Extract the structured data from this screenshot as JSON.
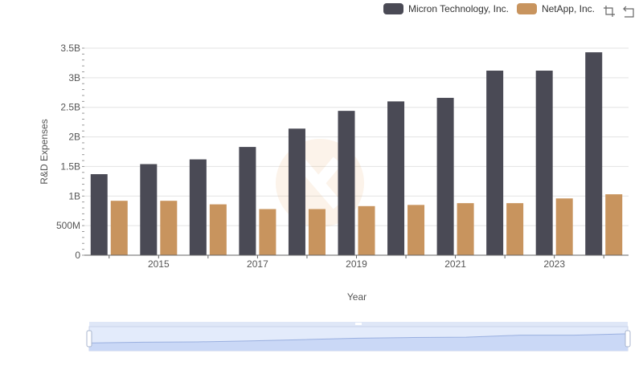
{
  "legend": {
    "items": [
      {
        "label": "Micron Technology, Inc.",
        "color": "#4a4a55"
      },
      {
        "label": "NetApp, Inc.",
        "color": "#c8945e"
      }
    ]
  },
  "toolbox": {
    "icons": [
      "zoom-icon",
      "restore-icon"
    ]
  },
  "chart_data": {
    "type": "bar",
    "xlabel": "Year",
    "ylabel": "R&D Expenses",
    "categories": [
      "2014",
      "2015",
      "2016",
      "2017",
      "2018",
      "2019",
      "2020",
      "2021",
      "2022",
      "2023",
      "2024"
    ],
    "x_tick_labels": [
      "2015",
      "2017",
      "2019",
      "2021",
      "2023"
    ],
    "y_ticks": [
      0,
      500000000,
      1000000000,
      1500000000,
      2000000000,
      2500000000,
      3000000000,
      3500000000
    ],
    "y_tick_labels": [
      "0",
      "500M",
      "1B",
      "1.5B",
      "2B",
      "2.5B",
      "3B",
      "3.5B"
    ],
    "ylim": [
      0,
      3500000000
    ],
    "series": [
      {
        "name": "Micron Technology, Inc.",
        "color": "#4a4a55",
        "values": [
          1370000000,
          1540000000,
          1620000000,
          1830000000,
          2140000000,
          2440000000,
          2600000000,
          2660000000,
          3120000000,
          3120000000,
          3430000000
        ]
      },
      {
        "name": "NetApp, Inc.",
        "color": "#c8945e",
        "values": [
          920000000,
          920000000,
          860000000,
          780000000,
          780000000,
          830000000,
          850000000,
          880000000,
          880000000,
          960000000,
          1030000000
        ]
      }
    ],
    "grid": true,
    "legend_position": "top-right",
    "data_zoom": {
      "start": 0,
      "end": 100
    }
  }
}
